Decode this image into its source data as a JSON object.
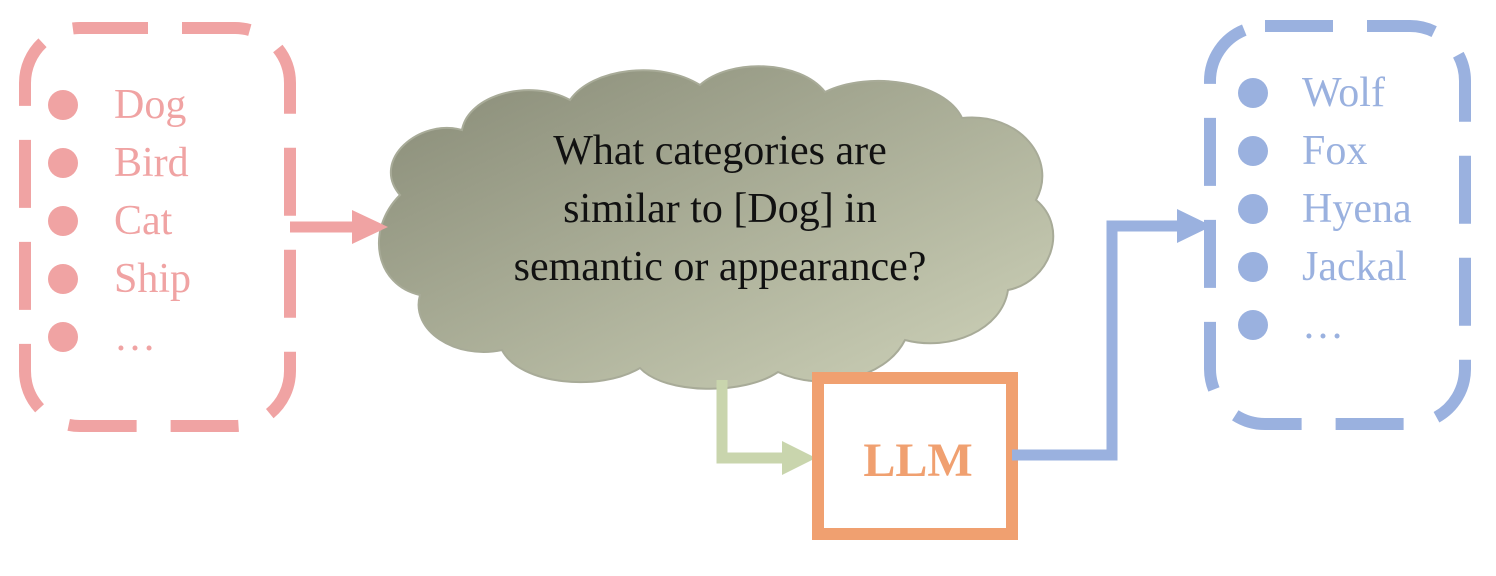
{
  "input_list": {
    "color": "#f0a3a3",
    "items": [
      "Dog",
      "Bird",
      "Cat",
      "Ship",
      "…"
    ]
  },
  "question": {
    "lines": [
      "What categories  are",
      "similar to [Dog] in",
      "semantic or appearance?"
    ]
  },
  "model": {
    "label": "LLM",
    "color": "#f0a070"
  },
  "output_list": {
    "color": "#9ab1df",
    "items": [
      "Wolf",
      "Fox",
      "Hyena",
      "Jackal",
      "…"
    ]
  },
  "colors": {
    "cloud_fill_dark": "#8c8f7b",
    "cloud_fill_light": "#c9cdb4",
    "arrow_green": "#c9d5ad"
  }
}
